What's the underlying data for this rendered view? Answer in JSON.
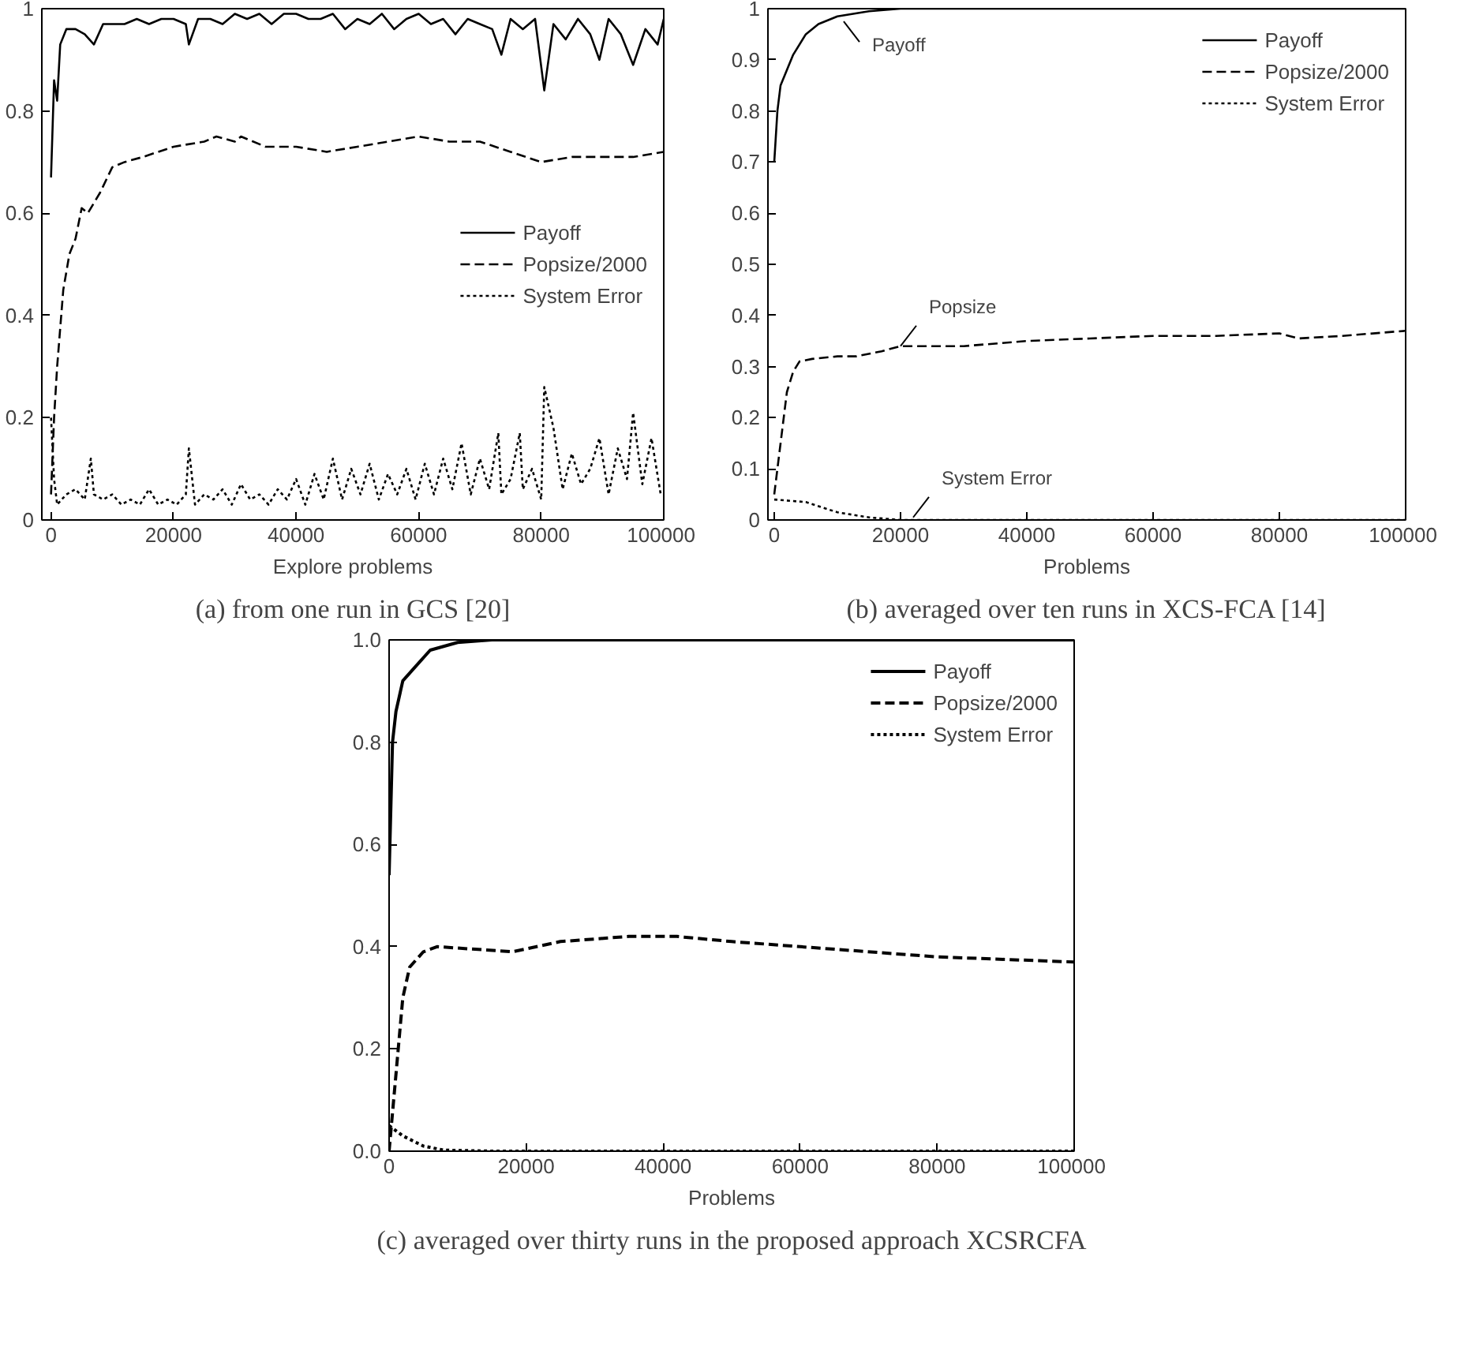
{
  "chart_data": [
    {
      "type": "line",
      "title": "(a) from one run in GCS [20]",
      "xlabel": "Explore problems",
      "xlim": [
        -1500,
        100000
      ],
      "xticks": [
        0,
        20000,
        40000,
        60000,
        80000,
        100000
      ],
      "ylim": [
        0,
        1
      ],
      "yticks": [
        0,
        0.2,
        0.4,
        0.6,
        0.8,
        1
      ],
      "legend": "right",
      "series": [
        {
          "name": "Payoff",
          "color": "#000000",
          "line_style": "solid",
          "x": [
            0,
            500,
            1000,
            1500,
            2500,
            4000,
            5500,
            7000,
            8500,
            10000,
            12000,
            14000,
            16000,
            18000,
            20000,
            22000,
            22500,
            24000,
            26000,
            28000,
            30000,
            32000,
            34000,
            36000,
            38000,
            40000,
            42000,
            44000,
            46000,
            48000,
            50000,
            52000,
            54000,
            56000,
            58000,
            60000,
            62000,
            64000,
            66000,
            68000,
            70000,
            72000,
            73500,
            75000,
            77000,
            79000,
            80500,
            82000,
            84000,
            86000,
            88000,
            89500,
            91000,
            93000,
            95000,
            97000,
            99000,
            100000
          ],
          "values": [
            0.67,
            0.86,
            0.82,
            0.93,
            0.96,
            0.96,
            0.95,
            0.93,
            0.97,
            0.97,
            0.97,
            0.98,
            0.97,
            0.98,
            0.98,
            0.97,
            0.93,
            0.98,
            0.98,
            0.97,
            0.99,
            0.98,
            0.99,
            0.97,
            0.99,
            0.99,
            0.98,
            0.98,
            0.99,
            0.96,
            0.98,
            0.97,
            0.99,
            0.96,
            0.98,
            0.99,
            0.97,
            0.98,
            0.95,
            0.98,
            0.97,
            0.96,
            0.91,
            0.98,
            0.96,
            0.98,
            0.84,
            0.97,
            0.94,
            0.98,
            0.95,
            0.9,
            0.98,
            0.95,
            0.89,
            0.96,
            0.93,
            0.98
          ]
        },
        {
          "name": "Popsize/2000",
          "color": "#000000",
          "line_style": "dashed",
          "x": [
            0,
            500,
            1000,
            2000,
            3000,
            4000,
            5000,
            6000,
            8000,
            10000,
            12000,
            15000,
            20000,
            25000,
            27000,
            30000,
            31000,
            35000,
            40000,
            45000,
            50000,
            55000,
            60000,
            65000,
            70000,
            75000,
            80000,
            85000,
            90000,
            95000,
            100000
          ],
          "values": [
            0.05,
            0.2,
            0.3,
            0.45,
            0.52,
            0.55,
            0.61,
            0.6,
            0.64,
            0.69,
            0.7,
            0.71,
            0.73,
            0.74,
            0.75,
            0.74,
            0.75,
            0.73,
            0.73,
            0.72,
            0.73,
            0.74,
            0.75,
            0.74,
            0.74,
            0.72,
            0.7,
            0.71,
            0.71,
            0.71,
            0.72
          ]
        },
        {
          "name": "System Error",
          "color": "#000000",
          "line_style": "dotted",
          "x": [
            0,
            500,
            1000,
            2500,
            4000,
            5500,
            6500,
            7000,
            8500,
            10000,
            11500,
            13000,
            14500,
            16000,
            17500,
            19000,
            20500,
            22000,
            22500,
            23500,
            25000,
            26500,
            28000,
            29500,
            31000,
            32500,
            34000,
            35500,
            37000,
            38500,
            40000,
            41500,
            43000,
            44500,
            46000,
            47500,
            49000,
            50500,
            52000,
            53500,
            55000,
            56500,
            58000,
            59500,
            61000,
            62500,
            64000,
            65500,
            67000,
            68500,
            70000,
            71500,
            73000,
            73500,
            75000,
            76500,
            77000,
            78500,
            80000,
            80500,
            82000,
            83500,
            85000,
            86500,
            88000,
            89500,
            91000,
            92500,
            94000,
            95000,
            96500,
            98000,
            99500
          ],
          "values": [
            0.2,
            0.08,
            0.03,
            0.05,
            0.06,
            0.04,
            0.12,
            0.05,
            0.04,
            0.05,
            0.03,
            0.04,
            0.03,
            0.06,
            0.03,
            0.04,
            0.03,
            0.05,
            0.14,
            0.03,
            0.05,
            0.04,
            0.06,
            0.03,
            0.07,
            0.04,
            0.05,
            0.03,
            0.06,
            0.04,
            0.08,
            0.03,
            0.09,
            0.04,
            0.12,
            0.04,
            0.1,
            0.05,
            0.11,
            0.04,
            0.09,
            0.05,
            0.1,
            0.04,
            0.11,
            0.05,
            0.12,
            0.06,
            0.15,
            0.05,
            0.12,
            0.06,
            0.17,
            0.05,
            0.08,
            0.17,
            0.06,
            0.1,
            0.04,
            0.26,
            0.18,
            0.06,
            0.13,
            0.07,
            0.1,
            0.16,
            0.05,
            0.14,
            0.08,
            0.21,
            0.07,
            0.16,
            0.05
          ]
        }
      ]
    },
    {
      "type": "line",
      "title": "(b) averaged over ten runs in XCS-FCA [14]",
      "xlabel": "Problems",
      "xlim": [
        -1000,
        100000
      ],
      "xticks": [
        0,
        20000,
        40000,
        60000,
        80000,
        100000
      ],
      "ylim": [
        0,
        1
      ],
      "yticks": [
        0,
        0.1,
        0.2,
        0.3,
        0.4,
        0.5,
        0.6,
        0.7,
        0.8,
        0.9,
        1
      ],
      "legend": "top right",
      "annotations": [
        {
          "text": "Payoff",
          "x": 11000,
          "y": 0.975
        },
        {
          "text": "Popsize",
          "x": 20000,
          "y": 0.34
        },
        {
          "text": "System Error",
          "x": 22000,
          "y": 0.005
        }
      ],
      "series": [
        {
          "name": "Payoff",
          "color": "#000000",
          "line_style": "solid",
          "x": [
            0,
            500,
            1000,
            2000,
            3000,
            5000,
            7000,
            10000,
            15000,
            20000,
            100000
          ],
          "values": [
            0.7,
            0.8,
            0.85,
            0.88,
            0.91,
            0.95,
            0.97,
            0.985,
            0.995,
            1.0,
            1.0
          ]
        },
        {
          "name": "Popsize/2000",
          "color": "#000000",
          "line_style": "dashed",
          "x": [
            0,
            1000,
            2000,
            3000,
            4000,
            6000,
            10000,
            13000,
            17000,
            20000,
            25000,
            30000,
            40000,
            50000,
            60000,
            70000,
            80000,
            83000,
            90000,
            100000
          ],
          "values": [
            0.05,
            0.15,
            0.25,
            0.29,
            0.31,
            0.315,
            0.32,
            0.32,
            0.33,
            0.34,
            0.34,
            0.34,
            0.35,
            0.355,
            0.36,
            0.36,
            0.365,
            0.355,
            0.36,
            0.37
          ]
        },
        {
          "name": "System Error",
          "color": "#000000",
          "line_style": "dotted",
          "x": [
            0,
            5000,
            10000,
            15000,
            20000,
            100000
          ],
          "values": [
            0.04,
            0.035,
            0.015,
            0.005,
            0.0,
            0.0
          ]
        }
      ]
    },
    {
      "type": "line",
      "title": "(c) averaged over thirty runs in the proposed approach XCSRCFA",
      "xlabel": "Problems",
      "xlim": [
        0,
        100000
      ],
      "xticks": [
        0,
        20000,
        40000,
        60000,
        80000,
        100000
      ],
      "ylim": [
        0,
        1
      ],
      "yticks": [
        {
          "value": 0,
          "label": "0.0"
        },
        {
          "value": 0.2,
          "label": "0.2"
        },
        {
          "value": 0.4,
          "label": "0.4"
        },
        {
          "value": 0.6,
          "label": "0.6"
        },
        {
          "value": 0.8,
          "label": "0.8"
        },
        {
          "value": 1,
          "label": "1.0"
        }
      ],
      "legend": "top right",
      "series": [
        {
          "name": "Payoff",
          "color": "#000000",
          "line_style": "solid",
          "x": [
            0,
            500,
            1000,
            2000,
            4000,
            6000,
            10000,
            15000,
            100000
          ],
          "values": [
            0.54,
            0.8,
            0.86,
            0.92,
            0.95,
            0.98,
            0.995,
            1.0,
            1.0
          ]
        },
        {
          "name": "Popsize/2000",
          "color": "#000000",
          "line_style": "dashed",
          "x": [
            0,
            1000,
            2000,
            3000,
            5000,
            7000,
            18000,
            25000,
            35000,
            42000,
            50000,
            60000,
            80000,
            100000
          ],
          "values": [
            0.0,
            0.15,
            0.3,
            0.36,
            0.39,
            0.4,
            0.39,
            0.41,
            0.42,
            0.42,
            0.41,
            0.4,
            0.38,
            0.37
          ]
        },
        {
          "name": "System Error",
          "color": "#000000",
          "line_style": "dotted",
          "x": [
            0,
            2000,
            5000,
            8000,
            15000,
            100000
          ],
          "values": [
            0.05,
            0.03,
            0.01,
            0.002,
            0.0,
            0.0
          ]
        }
      ]
    }
  ]
}
